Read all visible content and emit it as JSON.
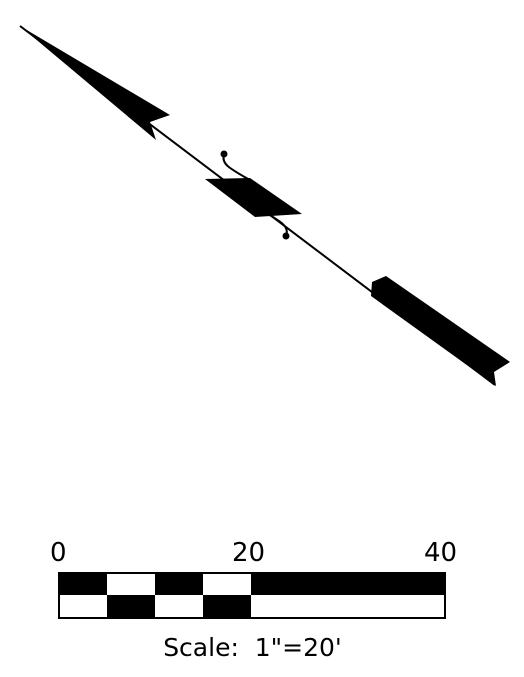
{
  "scale": {
    "tick_labels": [
      "0",
      "20",
      "40"
    ],
    "caption": "Scale:  1\"=20'"
  }
}
